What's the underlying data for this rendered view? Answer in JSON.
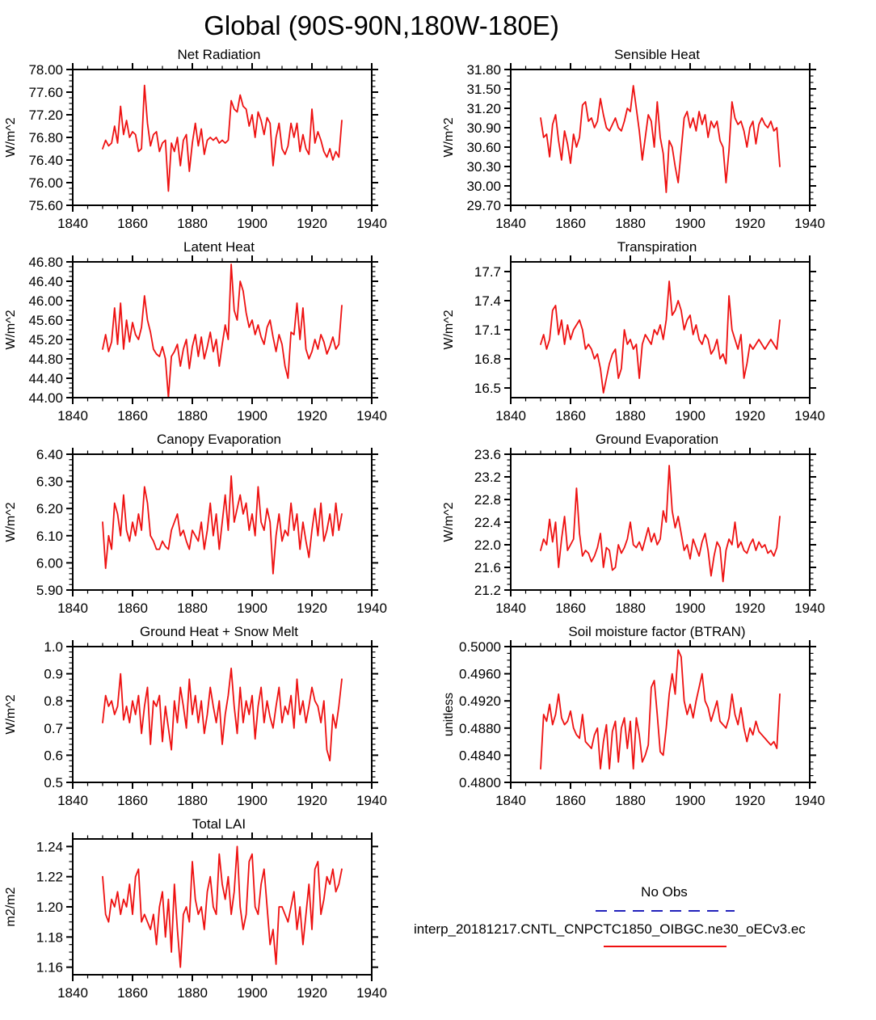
{
  "title": "Global (90S-90N,180W-180E)",
  "style": {
    "line_color": "#ee1111",
    "axis_color": "#000000"
  },
  "legend": {
    "no_obs_label": "No Obs",
    "no_obs_color": "#2222bb",
    "case_label": "interp_20181217.CNTL_CNPCTC1850_OIBGC.ne30_oECv3.ec",
    "case_color": "#ee1111"
  },
  "x_axis": {
    "lim": [
      1840,
      1940
    ],
    "ticks": [
      1840,
      1860,
      1880,
      1900,
      1920,
      1940
    ],
    "minor_step": 5,
    "x_start": 1850,
    "x_step": 1
  },
  "chart_data": [
    {
      "type": "line",
      "title": "Net Radiation",
      "ylabel": "W/m^2",
      "ylim": [
        75.6,
        78.0
      ],
      "yticks": [
        75.6,
        76.0,
        76.4,
        76.8,
        77.2,
        77.6,
        78.0
      ],
      "ydecimals": 2,
      "yminor": 3,
      "values": [
        76.6,
        76.75,
        76.65,
        76.7,
        77.0,
        76.7,
        77.35,
        76.85,
        77.1,
        76.8,
        76.9,
        76.85,
        76.55,
        76.6,
        77.72,
        77.05,
        76.65,
        76.85,
        76.9,
        76.55,
        76.7,
        76.75,
        75.85,
        76.7,
        76.55,
        76.8,
        76.3,
        76.75,
        76.85,
        76.2,
        76.7,
        77.05,
        76.65,
        76.95,
        76.5,
        76.75,
        76.8,
        76.75,
        76.8,
        76.7,
        76.75,
        76.7,
        76.75,
        77.45,
        77.3,
        77.25,
        77.55,
        77.35,
        77.3,
        77.0,
        77.2,
        76.8,
        77.25,
        77.1,
        76.85,
        77.15,
        77.05,
        76.3,
        76.8,
        77.05,
        76.6,
        76.5,
        76.65,
        77.05,
        76.8,
        77.05,
        76.55,
        76.85,
        76.6,
        76.5,
        77.3,
        76.7,
        76.9,
        76.75,
        76.55,
        76.45,
        76.6,
        76.4,
        76.55,
        76.45,
        77.1
      ]
    },
    {
      "type": "line",
      "title": "Sensible Heat",
      "ylabel": "W/m^2",
      "ylim": [
        29.7,
        31.8
      ],
      "yticks": [
        29.7,
        30.0,
        30.3,
        30.6,
        30.9,
        31.2,
        31.5,
        31.8
      ],
      "ydecimals": 2,
      "yminor": 2,
      "values": [
        31.05,
        30.75,
        30.8,
        30.45,
        30.95,
        31.1,
        30.7,
        30.4,
        30.85,
        30.65,
        30.35,
        30.8,
        30.6,
        30.75,
        31.25,
        31.3,
        31.0,
        31.05,
        30.9,
        31.0,
        31.35,
        31.1,
        30.9,
        30.85,
        30.95,
        31.05,
        30.9,
        30.85,
        31.0,
        31.2,
        31.15,
        31.55,
        31.2,
        30.85,
        30.4,
        30.75,
        31.1,
        31.0,
        30.6,
        31.3,
        30.75,
        30.5,
        29.9,
        30.7,
        30.6,
        30.3,
        30.05,
        30.55,
        31.05,
        31.15,
        30.9,
        31.05,
        30.85,
        31.15,
        30.95,
        31.1,
        30.75,
        31.0,
        30.9,
        31.0,
        30.7,
        30.6,
        30.05,
        30.55,
        31.3,
        31.05,
        30.95,
        31.0,
        30.85,
        30.6,
        30.9,
        31.0,
        30.65,
        30.95,
        31.05,
        30.95,
        30.9,
        31.0,
        30.85,
        30.9,
        30.3
      ]
    },
    {
      "type": "line",
      "title": "Latent Heat",
      "ylabel": "W/m^2",
      "ylim": [
        44.0,
        46.8
      ],
      "yticks": [
        44.0,
        44.4,
        44.8,
        45.2,
        45.6,
        46.0,
        46.4,
        46.8
      ],
      "ydecimals": 2,
      "yminor": 3,
      "values": [
        45.0,
        45.3,
        44.95,
        45.15,
        45.85,
        45.1,
        45.95,
        45.0,
        45.6,
        45.15,
        45.55,
        45.3,
        45.2,
        45.45,
        46.1,
        45.6,
        45.35,
        45.0,
        44.9,
        44.85,
        45.05,
        44.8,
        44.0,
        44.85,
        44.95,
        45.1,
        44.65,
        45.0,
        45.2,
        44.6,
        45.05,
        45.3,
        44.85,
        45.25,
        44.8,
        45.05,
        45.35,
        44.95,
        45.2,
        44.65,
        45.1,
        45.5,
        45.2,
        46.75,
        45.8,
        45.6,
        46.4,
        46.2,
        45.75,
        45.45,
        45.6,
        45.3,
        45.5,
        45.25,
        45.1,
        45.45,
        45.6,
        45.25,
        44.95,
        45.3,
        45.1,
        44.65,
        44.4,
        45.35,
        45.3,
        45.95,
        45.2,
        45.85,
        45.0,
        44.8,
        44.95,
        45.2,
        45.0,
        45.3,
        45.15,
        44.9,
        45.05,
        45.25,
        45.0,
        45.1,
        45.9
      ]
    },
    {
      "type": "line",
      "title": "Transpiration",
      "ylabel": "W/m^2",
      "ylim": [
        16.4,
        17.8
      ],
      "yticks": [
        16.5,
        16.8,
        17.1,
        17.4,
        17.7
      ],
      "ydecimals": 1,
      "yminor": 2,
      "values": [
        16.95,
        17.05,
        16.9,
        17.0,
        17.3,
        17.35,
        17.05,
        17.2,
        16.95,
        17.15,
        17.0,
        17.1,
        17.15,
        17.2,
        17.1,
        16.9,
        16.95,
        16.9,
        16.8,
        16.85,
        16.7,
        16.45,
        16.6,
        16.75,
        16.85,
        16.9,
        16.6,
        16.7,
        17.1,
        16.95,
        17.0,
        16.9,
        16.95,
        16.6,
        16.95,
        17.05,
        17.0,
        16.95,
        17.1,
        17.05,
        17.15,
        17.0,
        17.2,
        17.6,
        17.25,
        17.3,
        17.4,
        17.3,
        17.1,
        17.2,
        17.25,
        17.05,
        17.15,
        17.0,
        16.95,
        17.05,
        17.0,
        16.85,
        16.9,
        17.0,
        16.8,
        16.85,
        16.75,
        17.45,
        17.1,
        17.0,
        16.9,
        17.05,
        16.6,
        16.75,
        16.95,
        16.9,
        16.95,
        17.0,
        16.95,
        16.9,
        16.95,
        17.0,
        16.95,
        16.9,
        17.2
      ]
    },
    {
      "type": "line",
      "title": "Canopy Evaporation",
      "ylabel": "W/m^2",
      "ylim": [
        5.9,
        6.4
      ],
      "yticks": [
        5.9,
        6.0,
        6.1,
        6.2,
        6.3,
        6.4
      ],
      "ydecimals": 2,
      "yminor": 4,
      "values": [
        6.15,
        5.98,
        6.1,
        6.05,
        6.22,
        6.18,
        6.1,
        6.25,
        6.12,
        6.08,
        6.15,
        6.1,
        6.18,
        6.12,
        6.28,
        6.22,
        6.1,
        6.08,
        6.05,
        6.05,
        6.08,
        6.06,
        6.05,
        6.12,
        6.15,
        6.18,
        6.1,
        6.12,
        6.08,
        6.05,
        6.12,
        6.1,
        6.08,
        6.15,
        6.05,
        6.12,
        6.22,
        6.1,
        6.18,
        6.05,
        6.15,
        6.25,
        6.12,
        6.32,
        6.15,
        6.2,
        6.25,
        6.18,
        6.22,
        6.12,
        6.18,
        6.1,
        6.28,
        6.15,
        6.12,
        6.2,
        6.15,
        5.96,
        6.1,
        6.18,
        6.08,
        6.12,
        6.1,
        6.22,
        6.12,
        6.18,
        6.05,
        6.15,
        6.08,
        6.02,
        6.12,
        6.2,
        6.1,
        6.22,
        6.08,
        6.12,
        6.18,
        6.1,
        6.22,
        6.12,
        6.18
      ]
    },
    {
      "type": "line",
      "title": "Ground Evaporation",
      "ylabel": "W/m^2",
      "ylim": [
        21.2,
        23.6
      ],
      "yticks": [
        21.2,
        21.6,
        22.0,
        22.4,
        22.8,
        23.2,
        23.6
      ],
      "ydecimals": 1,
      "yminor": 3,
      "values": [
        21.9,
        22.1,
        22.0,
        22.45,
        22.05,
        22.4,
        21.6,
        22.1,
        22.5,
        21.9,
        22.0,
        22.1,
        23.0,
        22.2,
        21.8,
        21.9,
        21.85,
        21.7,
        21.8,
        21.95,
        22.2,
        21.6,
        21.95,
        21.9,
        21.55,
        21.6,
        22.0,
        21.85,
        21.95,
        22.1,
        22.4,
        22.0,
        21.95,
        22.05,
        21.9,
        22.1,
        22.3,
        22.05,
        22.2,
        22.0,
        22.1,
        22.6,
        22.4,
        23.4,
        22.6,
        22.3,
        22.5,
        22.2,
        21.9,
        22.0,
        21.75,
        22.1,
        21.95,
        21.8,
        22.05,
        22.2,
        21.9,
        21.45,
        21.8,
        22.05,
        21.95,
        21.35,
        21.9,
        22.1,
        22.0,
        22.4,
        21.95,
        22.05,
        21.9,
        21.85,
        22.0,
        22.1,
        21.9,
        22.05,
        21.95,
        22.0,
        21.85,
        21.9,
        21.8,
        21.95,
        22.5
      ]
    },
    {
      "type": "line",
      "title": "Ground Heat + Snow Melt",
      "ylabel": "W/m^2",
      "ylim": [
        0.5,
        1.0
      ],
      "yticks": [
        0.5,
        0.6,
        0.7,
        0.8,
        0.9,
        1.0
      ],
      "ydecimals": 1,
      "yminor": 4,
      "values": [
        0.72,
        0.82,
        0.78,
        0.8,
        0.75,
        0.78,
        0.9,
        0.73,
        0.78,
        0.72,
        0.8,
        0.75,
        0.82,
        0.68,
        0.78,
        0.85,
        0.64,
        0.8,
        0.78,
        0.82,
        0.65,
        0.78,
        0.7,
        0.62,
        0.8,
        0.72,
        0.85,
        0.78,
        0.7,
        0.88,
        0.75,
        0.82,
        0.72,
        0.8,
        0.68,
        0.75,
        0.85,
        0.78,
        0.72,
        0.8,
        0.64,
        0.75,
        0.82,
        0.92,
        0.78,
        0.68,
        0.85,
        0.72,
        0.8,
        0.75,
        0.82,
        0.66,
        0.78,
        0.85,
        0.72,
        0.8,
        0.74,
        0.7,
        0.78,
        0.85,
        0.72,
        0.78,
        0.75,
        0.82,
        0.7,
        0.88,
        0.75,
        0.8,
        0.72,
        0.78,
        0.85,
        0.8,
        0.78,
        0.72,
        0.8,
        0.62,
        0.58,
        0.75,
        0.7,
        0.78,
        0.88
      ]
    },
    {
      "type": "line",
      "title": "Soil moisture factor (BTRAN)",
      "ylabel": "unitless",
      "ylim": [
        0.48,
        0.5
      ],
      "yticks": [
        0.48,
        0.484,
        0.488,
        0.492,
        0.496,
        0.5
      ],
      "ydecimals": 4,
      "yminor": 3,
      "values": [
        0.482,
        0.49,
        0.489,
        0.4915,
        0.4885,
        0.49,
        0.493,
        0.4895,
        0.4885,
        0.489,
        0.4905,
        0.488,
        0.487,
        0.4865,
        0.49,
        0.486,
        0.4855,
        0.485,
        0.487,
        0.488,
        0.482,
        0.486,
        0.4885,
        0.482,
        0.4875,
        0.489,
        0.483,
        0.488,
        0.4895,
        0.485,
        0.489,
        0.482,
        0.4895,
        0.487,
        0.483,
        0.484,
        0.4855,
        0.494,
        0.495,
        0.49,
        0.4845,
        0.484,
        0.488,
        0.493,
        0.496,
        0.493,
        0.4995,
        0.4985,
        0.492,
        0.49,
        0.4915,
        0.4895,
        0.492,
        0.494,
        0.496,
        0.492,
        0.491,
        0.489,
        0.4905,
        0.492,
        0.489,
        0.4885,
        0.488,
        0.4895,
        0.493,
        0.49,
        0.4885,
        0.491,
        0.488,
        0.486,
        0.488,
        0.487,
        0.489,
        0.4875,
        0.487,
        0.4865,
        0.486,
        0.4855,
        0.486,
        0.485,
        0.493
      ]
    },
    {
      "type": "line",
      "title": "Total LAI",
      "ylabel": "m2/m2",
      "ylim": [
        1.155,
        1.245
      ],
      "yticks": [
        1.16,
        1.18,
        1.2,
        1.22,
        1.24
      ],
      "ydecimals": 2,
      "yminor": 3,
      "values": [
        1.22,
        1.195,
        1.19,
        1.205,
        1.2,
        1.21,
        1.195,
        1.205,
        1.2,
        1.215,
        1.195,
        1.22,
        1.225,
        1.19,
        1.195,
        1.19,
        1.185,
        1.195,
        1.175,
        1.2,
        1.21,
        1.18,
        1.205,
        1.17,
        1.215,
        1.185,
        1.16,
        1.195,
        1.2,
        1.19,
        1.23,
        1.205,
        1.195,
        1.2,
        1.185,
        1.21,
        1.22,
        1.2,
        1.195,
        1.235,
        1.215,
        1.205,
        1.22,
        1.195,
        1.21,
        1.24,
        1.2,
        1.185,
        1.195,
        1.23,
        1.235,
        1.2,
        1.195,
        1.215,
        1.225,
        1.2,
        1.175,
        1.185,
        1.162,
        1.2,
        1.2,
        1.195,
        1.19,
        1.2,
        1.21,
        1.185,
        1.2,
        1.175,
        1.195,
        1.215,
        1.185,
        1.225,
        1.23,
        1.195,
        1.205,
        1.22,
        1.215,
        1.225,
        1.21,
        1.215,
        1.225
      ]
    }
  ]
}
